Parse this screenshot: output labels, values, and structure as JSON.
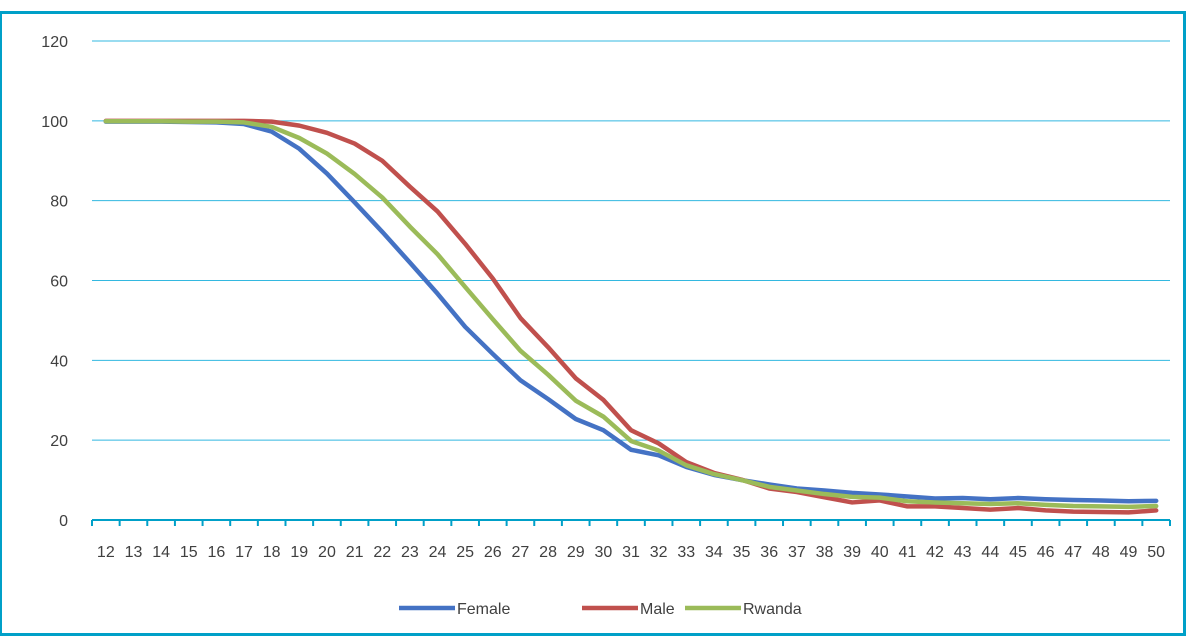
{
  "caption_fragment": "",
  "colors": {
    "frame": "#00a0c8",
    "grid": "#33b8e0",
    "axis": "#00a0c8",
    "text": "#404040"
  },
  "chart_data": {
    "type": "line",
    "title": "",
    "xlabel": "",
    "ylabel": "",
    "x": [
      12,
      13,
      14,
      15,
      16,
      17,
      18,
      19,
      20,
      21,
      22,
      23,
      24,
      25,
      26,
      27,
      28,
      29,
      30,
      31,
      32,
      33,
      34,
      35,
      36,
      37,
      38,
      39,
      40,
      41,
      42,
      43,
      44,
      45,
      46,
      47,
      48,
      49,
      50
    ],
    "ylim": [
      0,
      120
    ],
    "yticks": [
      0,
      20,
      40,
      60,
      80,
      100,
      120
    ],
    "grid": true,
    "legend": "bottom",
    "series": [
      {
        "name": "Female",
        "color": "#4472c4",
        "values": [
          99.8,
          99.8,
          99.8,
          99.7,
          99.6,
          99.2,
          97.3,
          93,
          86.8,
          79.6,
          72.2,
          64.5,
          56.7,
          48.4,
          41.6,
          35,
          30.3,
          25.3,
          22.5,
          17.6,
          16.2,
          13.3,
          11.3,
          10,
          8.9,
          7.9,
          7.4,
          6.8,
          6.4,
          5.9,
          5.4,
          5.5,
          5.2,
          5.5,
          5.2,
          5.0,
          4.9,
          4.7,
          4.8
        ]
      },
      {
        "name": "Male",
        "color": "#c0504d",
        "values": [
          100,
          100,
          100,
          100,
          100,
          100,
          99.8,
          98.8,
          97,
          94.3,
          90,
          83.5,
          77.3,
          69.2,
          60.5,
          50.6,
          43.3,
          35.5,
          30.1,
          22.5,
          19.2,
          14.5,
          11.8,
          10.1,
          7.9,
          7,
          5.7,
          4.4,
          4.9,
          3.4,
          3.4,
          3.0,
          2.6,
          3.0,
          2.4,
          2.1,
          2.0,
          1.9,
          2.4
        ]
      },
      {
        "name": "Rwanda",
        "color": "#9bbb59",
        "values": [
          99.9,
          99.9,
          99.9,
          99.8,
          99.8,
          99.6,
          98.5,
          95.7,
          91.8,
          86.7,
          80.8,
          73.5,
          66.6,
          58.4,
          50.3,
          42.4,
          36.4,
          29.9,
          25.9,
          19.8,
          17.4,
          13.7,
          11.5,
          10,
          8.3,
          7.4,
          6.5,
          5.8,
          5.6,
          4.7,
          4.4,
          4.2,
          4.0,
          4.2,
          3.8,
          3.5,
          3.4,
          3.3,
          3.5
        ]
      }
    ]
  }
}
